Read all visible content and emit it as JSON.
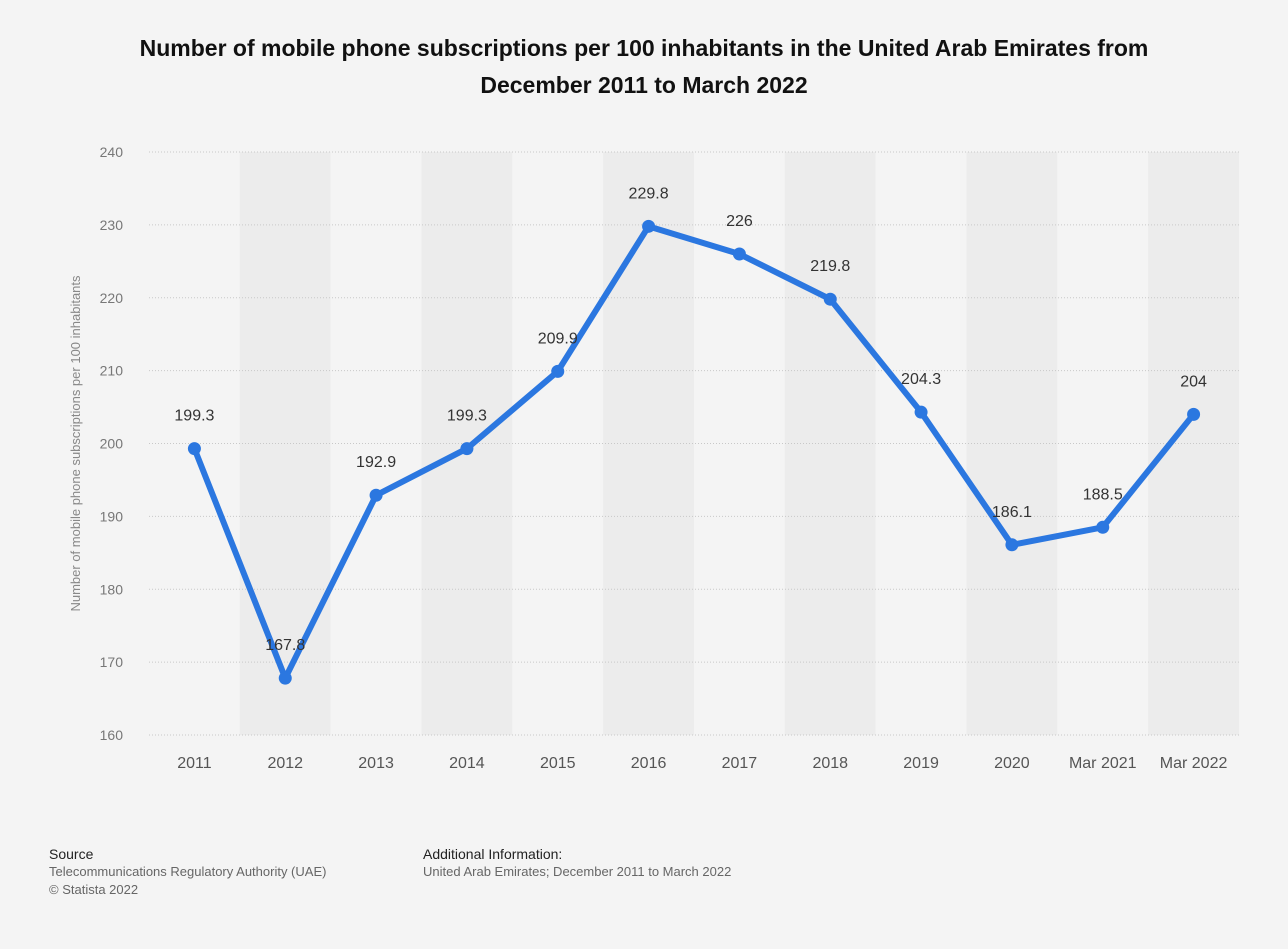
{
  "page": {
    "title": "Number of mobile phone subscriptions per 100 inhabitants in the United Arab Emirates from December 2011 to March 2022"
  },
  "chart_data": {
    "type": "line",
    "title": "Number of mobile phone subscriptions per 100 inhabitants in the United Arab Emirates from December 2011 to March 2022",
    "xlabel": "",
    "ylabel": "Number of mobile phone subscriptions per 100 inhabitants",
    "categories": [
      "2011",
      "2012",
      "2013",
      "2014",
      "2015",
      "2016",
      "2017",
      "2018",
      "2019",
      "2020",
      "Mar 2021",
      "Mar 2022"
    ],
    "series": [
      {
        "values": [
          199.3,
          167.8,
          192.9,
          199.3,
          209.9,
          229.8,
          226,
          219.8,
          204.3,
          186.1,
          188.5,
          204
        ],
        "labels": [
          "199.3",
          "167.8",
          "192.9",
          "199.3",
          "209.9",
          "229.8",
          "226",
          "219.8",
          "204.3",
          "186.1",
          "188.5",
          "204"
        ]
      }
    ],
    "ylim": [
      160,
      240
    ],
    "yticks": [
      "160",
      "170",
      "180",
      "190",
      "200",
      "210",
      "220",
      "230",
      "240"
    ],
    "grid": true,
    "legend": "none",
    "colors": {
      "line": "#2b77e0",
      "band": "#ececec",
      "grid": "#c8c8c8"
    }
  },
  "footer": {
    "source_heading": "Source",
    "source_line": "Telecommunications Regulatory Authority (UAE)",
    "copyright": "© Statista 2022",
    "info_heading": "Additional Information:",
    "info_line": "United Arab Emirates; December 2011 to March 2022"
  }
}
